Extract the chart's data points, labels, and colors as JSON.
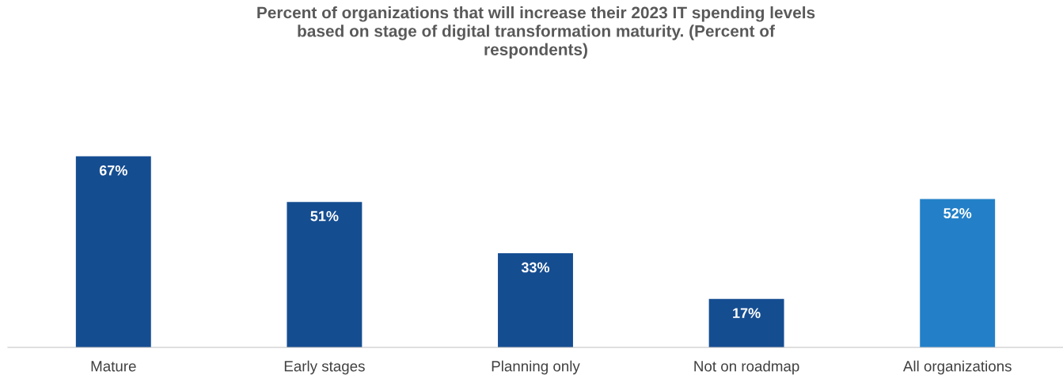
{
  "chart_data": {
    "type": "bar",
    "title": "Percent of organizations that will increase their 2023 IT spending levels\nbased on stage of digital transformation maturity. (Percent of\nrespondents)",
    "categories": [
      "Mature",
      "Early stages",
      "Planning only",
      "Not on roadmap",
      "All organizations"
    ],
    "values": [
      67,
      51,
      33,
      17,
      52
    ],
    "colors": [
      "#154d91",
      "#154d91",
      "#154d91",
      "#154d91",
      "#2380c8"
    ],
    "value_labels": [
      "67%",
      "51%",
      "33%",
      "17%",
      "52%"
    ],
    "data_labels": false
  }
}
